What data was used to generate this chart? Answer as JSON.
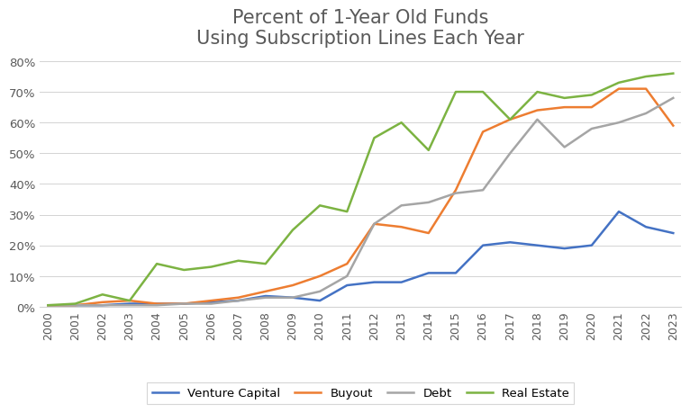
{
  "title_line1": "Percent of 1-Year Old Funds",
  "title_line2": "Using Subscription Lines Each Year",
  "years": [
    2000,
    2001,
    2002,
    2003,
    2004,
    2005,
    2006,
    2007,
    2008,
    2009,
    2010,
    2011,
    2012,
    2013,
    2014,
    2015,
    2016,
    2017,
    2018,
    2019,
    2020,
    2021,
    2022,
    2023
  ],
  "venture_capital": [
    0.5,
    0.5,
    0.5,
    1.0,
    1.0,
    1.0,
    1.5,
    2.0,
    3.5,
    3.0,
    2.0,
    7.0,
    8.0,
    8.0,
    11.0,
    11.0,
    20.0,
    21.0,
    20.0,
    19.0,
    20.0,
    31.0,
    26.0,
    24.0
  ],
  "buyout": [
    0.5,
    0.5,
    1.5,
    2.0,
    1.0,
    1.0,
    2.0,
    3.0,
    5.0,
    7.0,
    10.0,
    14.0,
    27.0,
    26.0,
    24.0,
    38.0,
    57.0,
    61.0,
    64.0,
    65.0,
    65.0,
    71.0,
    71.0,
    59.0
  ],
  "debt": [
    0.5,
    0.5,
    0.5,
    0.5,
    0.5,
    1.0,
    1.0,
    2.0,
    3.0,
    3.0,
    5.0,
    10.0,
    27.0,
    33.0,
    34.0,
    37.0,
    38.0,
    50.0,
    61.0,
    52.0,
    58.0,
    60.0,
    63.0,
    68.0
  ],
  "real_estate": [
    0.5,
    1.0,
    4.0,
    2.0,
    14.0,
    12.0,
    13.0,
    15.0,
    14.0,
    25.0,
    33.0,
    31.0,
    55.0,
    60.0,
    51.0,
    70.0,
    70.0,
    61.0,
    70.0,
    68.0,
    69.0,
    73.0,
    75.0,
    76.0
  ],
  "vc_color": "#4472C4",
  "buyout_color": "#ED7D31",
  "debt_color": "#A5A5A5",
  "real_estate_color": "#7CB342",
  "ylim": [
    0,
    80
  ],
  "yticks": [
    0,
    10,
    20,
    30,
    40,
    50,
    60,
    70,
    80
  ],
  "background_color": "#FFFFFF",
  "grid_color": "#D3D3D3",
  "title_fontsize": 15,
  "title_color": "#595959",
  "tick_color": "#595959",
  "legend_labels": [
    "Venture Capital",
    "Buyout",
    "Debt",
    "Real Estate"
  ],
  "line_width": 1.8
}
